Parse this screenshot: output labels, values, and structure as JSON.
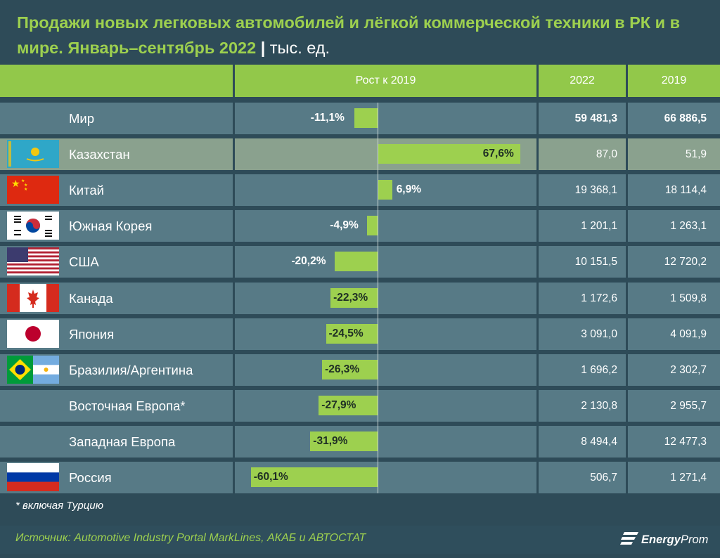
{
  "title": {
    "main": "Продажи новых легковых автомобилей и лёгкой коммерческой техники в РК и в мире. Январь–сентябрь 2022",
    "separator": "|",
    "unit": "тыс. ед."
  },
  "headers": {
    "growth": "Рост к 2019",
    "y2022": "2022",
    "y2019": "2019"
  },
  "chart_data": {
    "type": "bar",
    "orientation": "horizontal",
    "categories": [
      "Мир",
      "Казахстан",
      "Китай",
      "Южная Корея",
      "США",
      "Канада",
      "Япония",
      "Бразилия/Аргентина",
      "Восточная Европа*",
      "Западная Европа",
      "Россия"
    ],
    "series": [
      {
        "name": "Рост к 2019",
        "values": [
          -11.1,
          67.6,
          6.9,
          -4.9,
          -20.2,
          -22.3,
          -24.5,
          -26.3,
          -27.9,
          -31.9,
          -60.1
        ]
      }
    ],
    "value_labels": [
      "-11,1%",
      "67,6%",
      "6,9%",
      "-4,9%",
      "-20,2%",
      "-22,3%",
      "-24,5%",
      "-26,3%",
      "-27,9%",
      "-31,9%",
      "-60,1%"
    ],
    "table": {
      "columns": [
        "2022",
        "2019"
      ],
      "rows": [
        [
          "59 481,3",
          "66 886,5"
        ],
        [
          "87,0",
          "51,9"
        ],
        [
          "19 368,1",
          "18 114,4"
        ],
        [
          "1 201,1",
          "1 263,1"
        ],
        [
          "10 151,5",
          "12 720,2"
        ],
        [
          "1 172,6",
          "1 509,8"
        ],
        [
          "3 091,0",
          "4 091,9"
        ],
        [
          "1 696,2",
          "2 302,7"
        ],
        [
          "2 130,8",
          "2 955,7"
        ],
        [
          "8 494,4",
          "12 477,3"
        ],
        [
          "506,7",
          "1 271,4"
        ]
      ]
    },
    "highlight_row": "Казахстан",
    "bar_color": "#9dd04f"
  },
  "rows": [
    {
      "flag": "",
      "bold_values": true
    },
    {
      "flag": "kz-flag-icon",
      "bold_values": false
    },
    {
      "flag": "cn-flag-icon",
      "bold_values": false
    },
    {
      "flag": "kr-flag-icon",
      "bold_values": false
    },
    {
      "flag": "us-flag-icon",
      "bold_values": false
    },
    {
      "flag": "ca-flag-icon",
      "bold_values": false
    },
    {
      "flag": "jp-flag-icon",
      "bold_values": false
    },
    {
      "flag": "br-ar-flag-icon",
      "bold_values": false
    },
    {
      "flag": "",
      "bold_values": false
    },
    {
      "flag": "",
      "bold_values": false
    },
    {
      "flag": "ru-flag-icon",
      "bold_values": false
    }
  ],
  "footnote": "* включая Турцию",
  "source": "Источник: Automotive Industry Portal MarkLines, АКАБ и АВТОСТАТ",
  "logo": {
    "bold": "Energy",
    "light": "Prom"
  },
  "colors": {
    "background": "#2e4b58",
    "cell": "#577a86",
    "highlight_cell": "#8aa18e",
    "accent": "#9dd04f",
    "header": "#92c84a"
  }
}
